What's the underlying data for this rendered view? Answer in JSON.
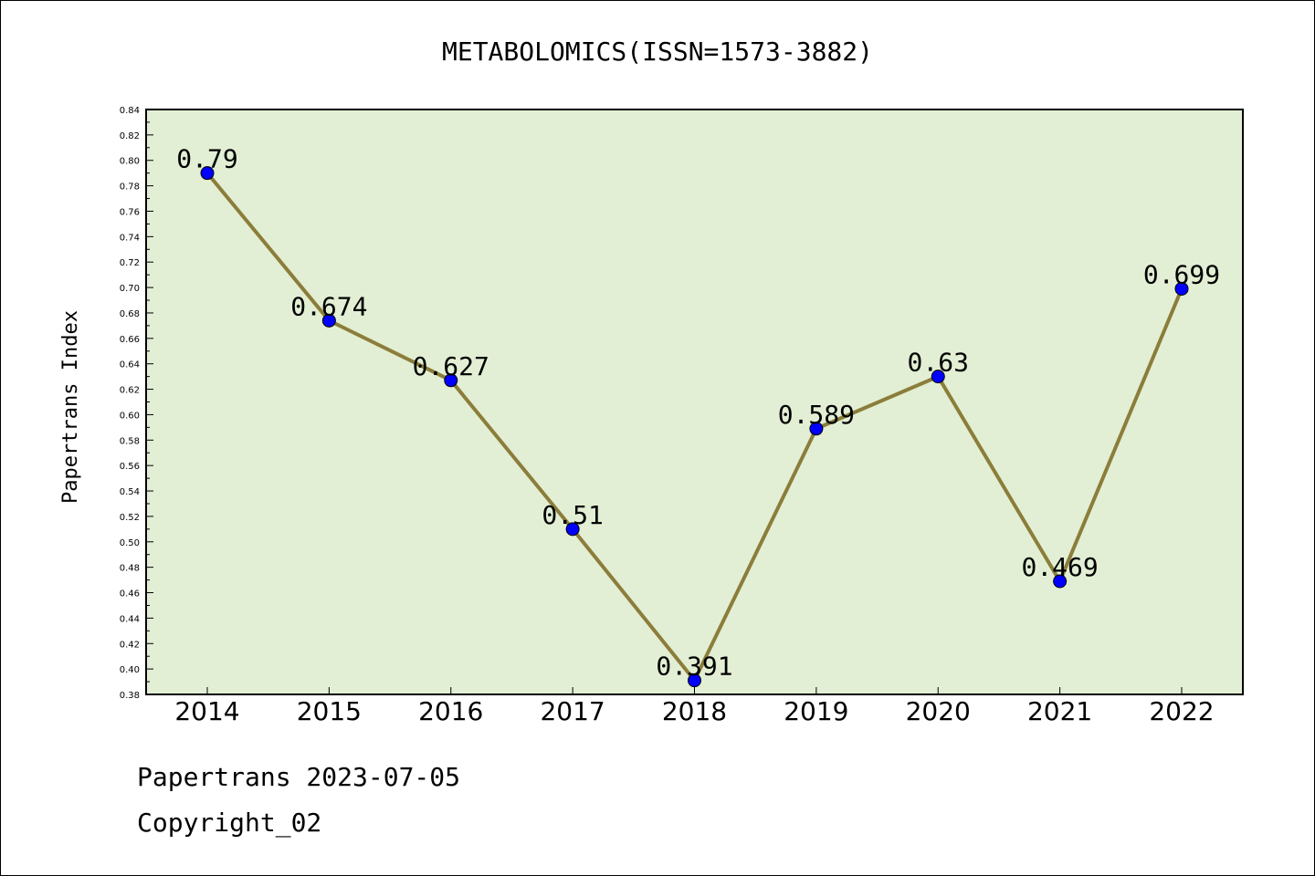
{
  "chart_data": {
    "type": "line",
    "title": "METABOLOMICS(ISSN=1573-3882)",
    "xlabel": "",
    "ylabel": "Papertrans Index",
    "categories": [
      "2014",
      "2015",
      "2016",
      "2017",
      "2018",
      "2019",
      "2020",
      "2021",
      "2022"
    ],
    "values": [
      0.79,
      0.674,
      0.627,
      0.51,
      0.391,
      0.589,
      0.63,
      0.469,
      0.699
    ],
    "data_labels": [
      "0.79",
      "0.674",
      "0.627",
      "0.51",
      "0.391",
      "0.589",
      "0.63",
      "0.469",
      "0.699"
    ],
    "ylim": [
      0.38,
      0.84
    ],
    "yticks": [
      "0.38",
      "0.40",
      "0.42",
      "0.44",
      "0.46",
      "0.48",
      "0.50",
      "0.52",
      "0.54",
      "0.56",
      "0.58",
      "0.60",
      "0.62",
      "0.64",
      "0.66",
      "0.68",
      "0.70",
      "0.72",
      "0.74",
      "0.76",
      "0.78",
      "0.80",
      "0.82",
      "0.84"
    ],
    "grid": false,
    "colors": {
      "plot_background": "#e2efd4",
      "line": "#8b7d3a",
      "marker": "#0000ff"
    }
  },
  "footer": {
    "line1": "Papertrans 2023-07-05",
    "line2": "Copyright_02"
  }
}
